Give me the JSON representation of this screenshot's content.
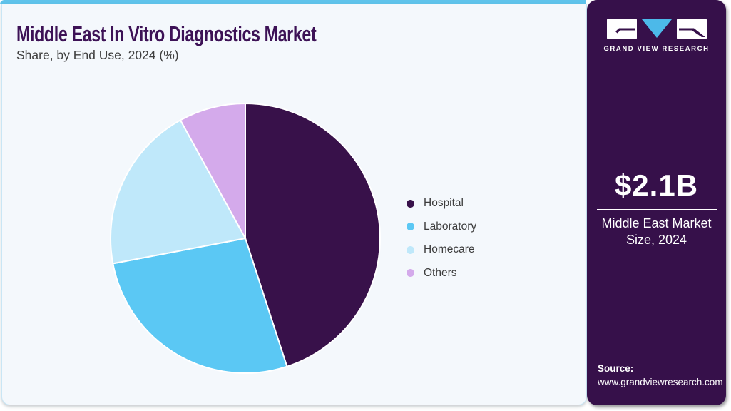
{
  "header": {
    "title": "Middle East In Vitro Diagnostics Market",
    "subtitle": "Share, by End Use, 2024 (%)"
  },
  "chart_data": {
    "type": "pie",
    "title": "Middle East In Vitro Diagnostics Market Share, by End Use, 2024 (%)",
    "categories": [
      "Hospital",
      "Laboratory",
      "Homecare",
      "Others"
    ],
    "values": [
      45,
      27,
      20,
      8
    ],
    "unit": "%",
    "colors": [
      "#38114a",
      "#5bc8f4",
      "#bfe8fa",
      "#d4aaeb"
    ],
    "start_angle_deg": 0,
    "direction": "clockwise",
    "legend_position": "right",
    "data_labels": false
  },
  "sidebar": {
    "brand": "GRAND VIEW RESEARCH",
    "metric_value": "$2.1B",
    "metric_label": "Middle East Market Size, 2024",
    "source_label": "Source:",
    "source_url": "www.grandviewresearch.com"
  },
  "theme": {
    "accent_bar": "#5fc3eb",
    "panel_bg": "#f4f8fc",
    "panel_border": "#c9e6f5",
    "title_color": "#3d1256",
    "subtitle_color": "#3f3f3f",
    "sidebar_bg": "#36104a",
    "logo_blue": "#4cb9e9",
    "legend_text": "#3c3c3c",
    "slice_stroke": "#ffffff"
  }
}
